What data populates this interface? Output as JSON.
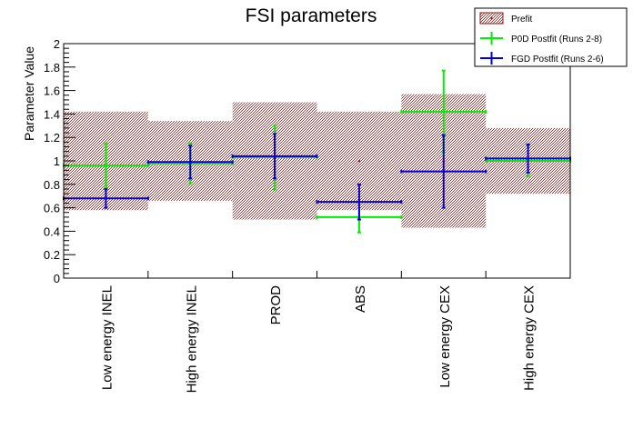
{
  "chart_data": {
    "type": "errorbar",
    "title": "FSI parameters",
    "ylabel": "Parameter Value",
    "xlabel": "",
    "ylim": [
      0,
      2
    ],
    "yticks": [
      "0",
      "0.2",
      "0.4",
      "0.6",
      "0.8",
      "1",
      "1.2",
      "1.4",
      "1.6",
      "1.8",
      "2"
    ],
    "categories": [
      "Low energy INEL",
      "High energy INEL",
      "PROD",
      "ABS",
      "Low energy CEX",
      "High energy CEX"
    ],
    "legend_position": "top-right",
    "grid": false,
    "series": [
      {
        "name": "Prefit",
        "style": "hatched-band",
        "color": "#8b1a1a",
        "values": [
          1.0,
          1.0,
          1.0,
          1.0,
          1.0,
          1.0
        ],
        "err_low": [
          0.42,
          0.34,
          0.5,
          0.42,
          0.57,
          0.28
        ],
        "err_high": [
          0.42,
          0.34,
          0.5,
          0.42,
          0.57,
          0.28
        ]
      },
      {
        "name": "P0D Postfit (Runs 2-8)",
        "style": "errorbar",
        "color": "#00ee00",
        "values": [
          0.96,
          0.98,
          1.03,
          0.52,
          1.42,
          1.0
        ],
        "err_low": [
          0.19,
          0.17,
          0.27,
          0.13,
          0.35,
          0.13
        ],
        "err_high": [
          0.19,
          0.17,
          0.27,
          0.13,
          0.35,
          0.13
        ]
      },
      {
        "name": "FGD Postfit (Runs 2-6)",
        "style": "errorbar",
        "color": "#0000dd",
        "values": [
          0.68,
          0.99,
          1.04,
          0.65,
          0.91,
          1.02
        ],
        "err_low": [
          0.08,
          0.14,
          0.19,
          0.15,
          0.31,
          0.12
        ],
        "err_high": [
          0.08,
          0.14,
          0.19,
          0.15,
          0.31,
          0.12
        ]
      }
    ]
  }
}
